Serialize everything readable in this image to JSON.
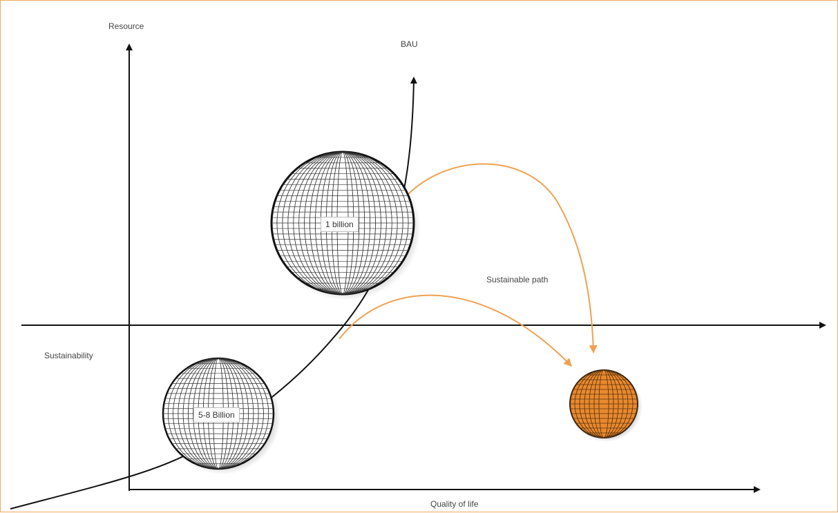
{
  "axes": {
    "vertical_label": "Resource",
    "horizontal_label": "Quality of life",
    "middle_label": "Sustainability"
  },
  "curves": {
    "bau_label": "BAU",
    "sustainable_label": "Sustainable path"
  },
  "globes": {
    "large": {
      "label": "1 billion"
    },
    "small": {
      "label": "5-8 Billion"
    },
    "target": {
      "label": ""
    }
  },
  "colors": {
    "axis": "#111111",
    "bau_curve": "#111111",
    "sustainable_path": "#f0a050",
    "target_globe": "#e8892e",
    "frame_border": "#f0a860"
  }
}
